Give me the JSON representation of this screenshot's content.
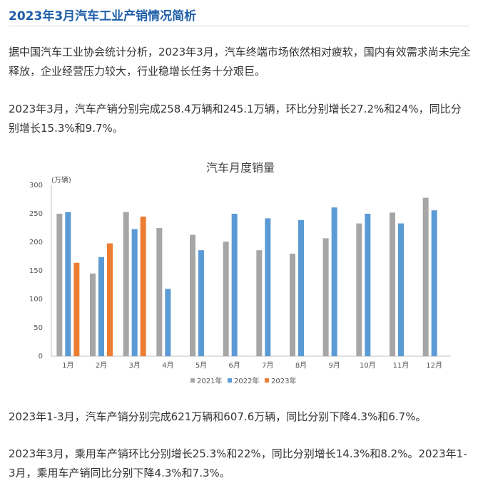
{
  "article": {
    "title": "2023年3月汽车工业产销情况简析",
    "paragraphs": [
      "据中国汽车工业协会统计分析，2023年3月，汽车终端市场依然相对疲软，国内有效需求尚未完全释放，企业经营压力较大，行业稳增长任务十分艰巨。",
      "2023年3月，汽车产销分别完成258.4万辆和245.1万辆，环比分别增长27.2%和24%，同比分别增长15.3%和9.7%。",
      "2023年1-3月，汽车产销分别完成621万辆和607.6万辆，同比分别下降4.3%和6.7%。",
      "2023年3月，乘用车产销环比分别增长25.3%和22%，同比分别增长14.3%和8.2%。2023年1-3月，乘用车产销同比分别下降4.3%和7.3%。"
    ]
  },
  "chart_data": {
    "type": "bar",
    "title": "汽车月度销量",
    "ylabel": "(万辆)",
    "xlabel": "",
    "categories": [
      "1月",
      "2月",
      "3月",
      "4月",
      "5月",
      "6月",
      "7月",
      "8月",
      "9月",
      "10月",
      "11月",
      "12月"
    ],
    "series": [
      {
        "name": "2021年",
        "color": "#a6a6a6",
        "values": [
          250,
          145,
          253,
          225,
          213,
          201,
          186,
          180,
          207,
          233,
          252,
          278
        ]
      },
      {
        "name": "2022年",
        "color": "#5b9bd5",
        "values": [
          253,
          174,
          223,
          118,
          186,
          250,
          242,
          239,
          261,
          250,
          233,
          256
        ]
      },
      {
        "name": "2023年",
        "color": "#ed7d31",
        "values": [
          164,
          198,
          245,
          null,
          null,
          null,
          null,
          null,
          null,
          null,
          null,
          null
        ]
      }
    ],
    "ylim": [
      0,
      300
    ],
    "yticks": [
      0,
      50,
      100,
      150,
      200,
      250,
      300
    ],
    "grid": false,
    "legend": "bottom"
  }
}
